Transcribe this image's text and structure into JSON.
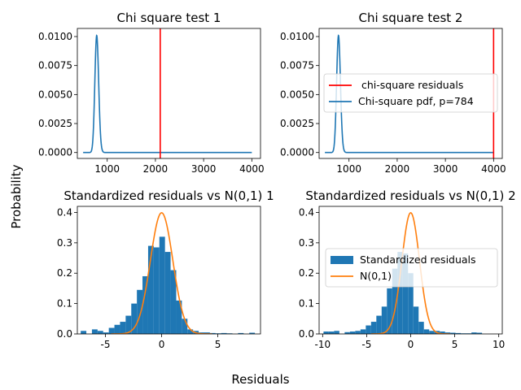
{
  "figure": {
    "supxlabel": "Residuals",
    "supylabel": "Probability"
  },
  "colors": {
    "pdf_line": "#1f77b4",
    "vline": "#ff0000",
    "hist": "#1f77b4",
    "normal_line": "#ff7f0e"
  },
  "chart_data": [
    {
      "type": "line",
      "title": "Chi square test 1",
      "xlim": [
        380,
        4180
      ],
      "ylim": [
        -0.00051,
        0.0107
      ],
      "xticks": [
        1000,
        2000,
        3000,
        4000
      ],
      "yticks": [
        0.0,
        0.0025,
        0.005,
        0.0075,
        0.01
      ],
      "ytick_labels": [
        "0.0000",
        "0.0025",
        "0.0050",
        "0.0075",
        "0.0100"
      ],
      "series": [
        {
          "kind": "pdf",
          "dof": 784,
          "peak": 0.0101,
          "x_range": [
            500,
            4000
          ]
        },
        {
          "kind": "vline",
          "x": 2100
        }
      ],
      "legend": null
    },
    {
      "type": "line",
      "title": "Chi square test 2",
      "xlim": [
        380,
        4180
      ],
      "ylim": [
        -0.00051,
        0.0107
      ],
      "xticks": [
        1000,
        2000,
        3000,
        4000
      ],
      "yticks": [
        0.0,
        0.0025,
        0.005,
        0.0075,
        0.01
      ],
      "ytick_labels": [
        "0.0000",
        "0.0025",
        "0.0050",
        "0.0075",
        "0.0100"
      ],
      "series": [
        {
          "kind": "pdf",
          "dof": 784,
          "peak": 0.0101,
          "x_range": [
            500,
            4000
          ],
          "name": "Chi-square pdf, p=784"
        },
        {
          "kind": "vline",
          "x": 4000,
          "name": " chi-square residuals"
        }
      ],
      "legend": "center-right",
      "legend_entries": [
        " chi-square residuals",
        "Chi-square pdf, p=784"
      ]
    },
    {
      "type": "bar",
      "title": "Standardized residuals vs N(0,1) 1",
      "xlim": [
        -7.5,
        8.8
      ],
      "ylim": [
        0,
        0.42
      ],
      "xticks": [
        -5,
        0,
        5
      ],
      "yticks": [
        0.0,
        0.1,
        0.2,
        0.3,
        0.4
      ],
      "ytick_labels": [
        "0.0",
        "0.1",
        "0.2",
        "0.3",
        "0.4"
      ],
      "bin_start": -7.2,
      "bin_width": 0.5,
      "heights": [
        0.01,
        0.0,
        0.015,
        0.01,
        0.005,
        0.02,
        0.03,
        0.04,
        0.06,
        0.1,
        0.145,
        0.19,
        0.29,
        0.285,
        0.32,
        0.27,
        0.21,
        0.11,
        0.05,
        0.015,
        0.01,
        0.005,
        0.005,
        0.003,
        0.002,
        0.003,
        0.002,
        0.0,
        0.003,
        0.0,
        0.004
      ],
      "normal_curve": {
        "mean": 0,
        "sd": 1
      },
      "legend": null
    },
    {
      "type": "bar",
      "title": "Standardized residuals vs N(0,1) 2",
      "xlim": [
        -10.4,
        10.4
      ],
      "ylim": [
        0,
        0.42
      ],
      "xticks": [
        -10,
        -5,
        0,
        5,
        10
      ],
      "yticks": [
        0.0,
        0.1,
        0.2,
        0.3,
        0.4
      ],
      "ytick_labels": [
        "0.0",
        "0.1",
        "0.2",
        "0.3",
        "0.4"
      ],
      "bin_start": -9.9,
      "bin_width": 0.6,
      "heights": [
        0.008,
        0.008,
        0.01,
        0.0,
        0.006,
        0.008,
        0.01,
        0.015,
        0.028,
        0.04,
        0.06,
        0.09,
        0.15,
        0.215,
        0.27,
        0.265,
        0.2,
        0.09,
        0.04,
        0.015,
        0.01,
        0.01,
        0.008,
        0.005,
        0.004,
        0.003,
        0.002,
        0.002,
        0.005,
        0.004
      ],
      "normal_curve": {
        "mean": 0,
        "sd": 1
      },
      "legend": "center-right",
      "legend_entries": [
        "Standardized residuals",
        "N(0,1)"
      ]
    }
  ]
}
